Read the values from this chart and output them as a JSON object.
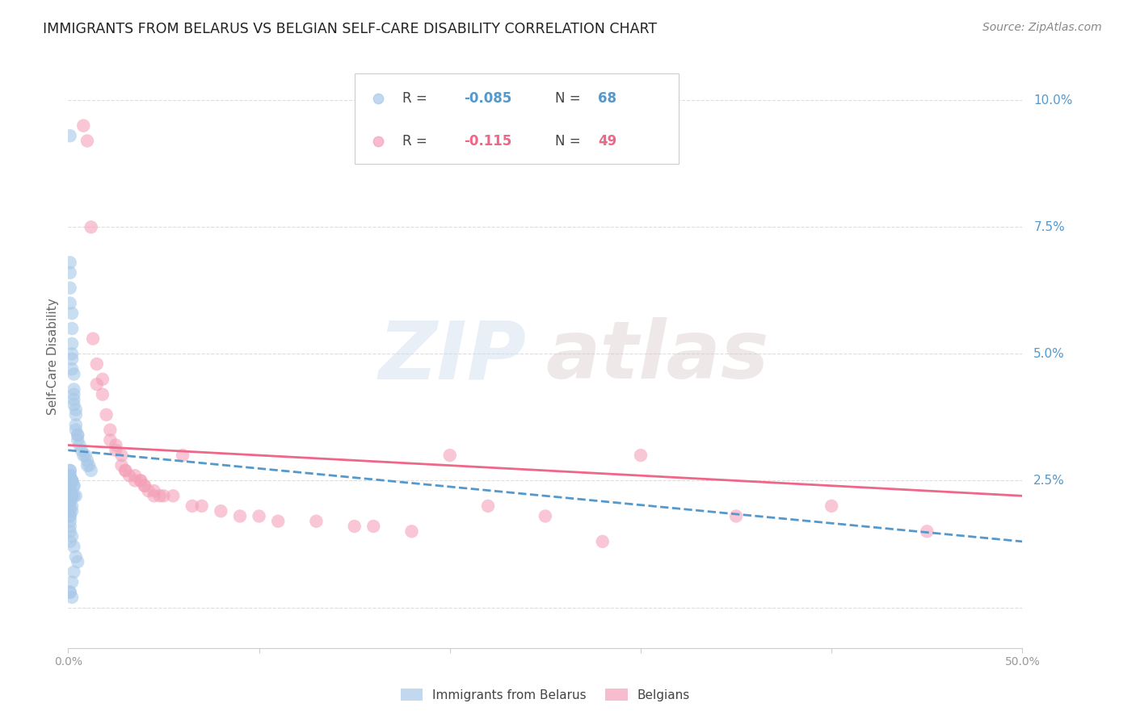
{
  "title": "IMMIGRANTS FROM BELARUS VS BELGIAN SELF-CARE DISABILITY CORRELATION CHART",
  "source": "Source: ZipAtlas.com",
  "ylabel": "Self-Care Disability",
  "xmin": 0.0,
  "xmax": 0.5,
  "ymin": -0.008,
  "ymax": 0.107,
  "yticks": [
    0.0,
    0.025,
    0.05,
    0.075,
    0.1
  ],
  "ytick_labels": [
    "",
    "2.5%",
    "5.0%",
    "7.5%",
    "10.0%"
  ],
  "legend_label1": "Immigrants from Belarus",
  "legend_label2": "Belgians",
  "blue_color": "#a8c8e8",
  "pink_color": "#f4a0b8",
  "blue_line_color": "#5599cc",
  "pink_line_color": "#ee6688",
  "blue_scatter_x": [
    0.001,
    0.001,
    0.001,
    0.001,
    0.001,
    0.002,
    0.002,
    0.002,
    0.002,
    0.002,
    0.002,
    0.003,
    0.003,
    0.003,
    0.003,
    0.003,
    0.004,
    0.004,
    0.004,
    0.004,
    0.005,
    0.005,
    0.005,
    0.006,
    0.007,
    0.008,
    0.009,
    0.01,
    0.01,
    0.011,
    0.012,
    0.001,
    0.001,
    0.001,
    0.001,
    0.002,
    0.002,
    0.002,
    0.003,
    0.003,
    0.001,
    0.001,
    0.001,
    0.002,
    0.002,
    0.003,
    0.004,
    0.001,
    0.001,
    0.002,
    0.001,
    0.002,
    0.001,
    0.001,
    0.001,
    0.001,
    0.001,
    0.001,
    0.002,
    0.001,
    0.003,
    0.004,
    0.005,
    0.003,
    0.002,
    0.001,
    0.001,
    0.002
  ],
  "blue_scatter_y": [
    0.093,
    0.068,
    0.066,
    0.063,
    0.06,
    0.058,
    0.055,
    0.052,
    0.05,
    0.049,
    0.047,
    0.046,
    0.043,
    0.042,
    0.041,
    0.04,
    0.039,
    0.038,
    0.036,
    0.035,
    0.034,
    0.034,
    0.033,
    0.032,
    0.031,
    0.03,
    0.03,
    0.029,
    0.028,
    0.028,
    0.027,
    0.027,
    0.027,
    0.026,
    0.026,
    0.025,
    0.025,
    0.025,
    0.024,
    0.024,
    0.024,
    0.023,
    0.023,
    0.022,
    0.022,
    0.022,
    0.022,
    0.021,
    0.021,
    0.02,
    0.02,
    0.019,
    0.019,
    0.018,
    0.018,
    0.017,
    0.016,
    0.015,
    0.014,
    0.013,
    0.012,
    0.01,
    0.009,
    0.007,
    0.005,
    0.003,
    0.003,
    0.002
  ],
  "pink_scatter_x": [
    0.008,
    0.01,
    0.012,
    0.013,
    0.015,
    0.015,
    0.018,
    0.018,
    0.02,
    0.022,
    0.022,
    0.025,
    0.025,
    0.028,
    0.028,
    0.03,
    0.03,
    0.032,
    0.035,
    0.035,
    0.038,
    0.038,
    0.04,
    0.04,
    0.042,
    0.045,
    0.045,
    0.048,
    0.05,
    0.055,
    0.06,
    0.065,
    0.07,
    0.08,
    0.09,
    0.1,
    0.11,
    0.13,
    0.15,
    0.16,
    0.18,
    0.2,
    0.22,
    0.25,
    0.28,
    0.3,
    0.35,
    0.4,
    0.45
  ],
  "pink_scatter_y": [
    0.095,
    0.092,
    0.075,
    0.053,
    0.048,
    0.044,
    0.045,
    0.042,
    0.038,
    0.035,
    0.033,
    0.032,
    0.031,
    0.03,
    0.028,
    0.027,
    0.027,
    0.026,
    0.026,
    0.025,
    0.025,
    0.025,
    0.024,
    0.024,
    0.023,
    0.023,
    0.022,
    0.022,
    0.022,
    0.022,
    0.03,
    0.02,
    0.02,
    0.019,
    0.018,
    0.018,
    0.017,
    0.017,
    0.016,
    0.016,
    0.015,
    0.03,
    0.02,
    0.018,
    0.013,
    0.03,
    0.018,
    0.02,
    0.015
  ],
  "watermark_line1": "ZIP",
  "watermark_line2": "atlas",
  "background_color": "#ffffff",
  "grid_color": "#dddddd",
  "title_color": "#222222",
  "title_fontsize": 12.5,
  "source_fontsize": 10
}
